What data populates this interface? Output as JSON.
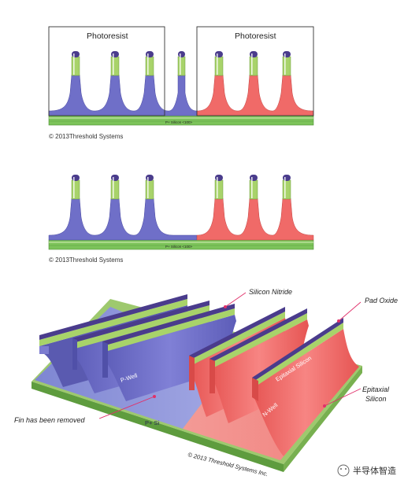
{
  "panel1": {
    "photoresist_left": "Photoresist",
    "photoresist_right": "Photoresist",
    "substrate_label": "P+ Silicon <100>",
    "copyright": "© 2013Threshold Systems"
  },
  "panel2": {
    "substrate_label": "P+ Silicon <100>",
    "copyright": "© 2013Threshold Systems"
  },
  "panel3": {
    "silicon_nitride": "Silicon Nitride",
    "pad_oxide": "Pad Oxide",
    "epitaxial_silicon_fin": "Epitaxial Silicon",
    "epitaxial_silicon_line1": "Epitaxial",
    "epitaxial_silicon_line2": "Silicon",
    "p_well": "P-Well",
    "n_well": "N-Well",
    "p_plus_si": "P+ Si",
    "fin_removed": "Fin has been removed",
    "copyright": "© 2013 Threshold Systems Inc."
  },
  "watermark": "半导体智造",
  "colors": {
    "p_well": "#6f6fc8",
    "n_well": "#f06a68",
    "epi": "#a8d36a",
    "nitride": "#4a3c8c",
    "substrate": "#7cc35a"
  }
}
